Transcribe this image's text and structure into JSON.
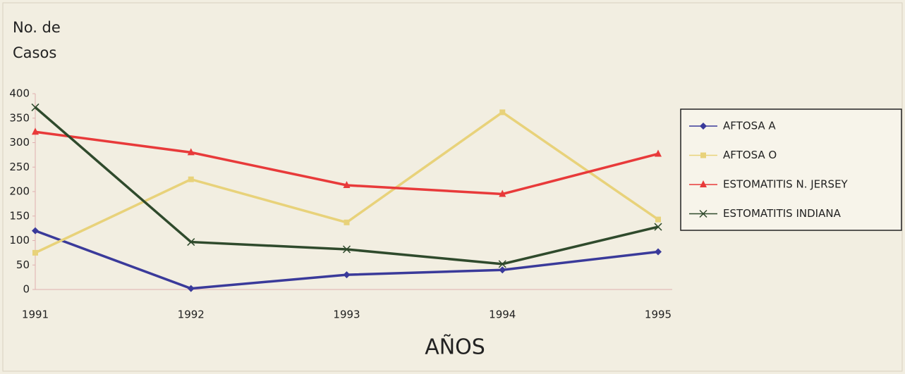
{
  "chart_data": {
    "type": "line",
    "ylabel": [
      "No. de",
      "Casos"
    ],
    "xlabel": "AÑOS",
    "categories": [
      "1991",
      "1992",
      "1993",
      "1994",
      "1995"
    ],
    "series": [
      {
        "name": "AFTOSA A",
        "color": "#3a3a9a",
        "marker": "diamond",
        "values": [
          120,
          2,
          30,
          40,
          77
        ]
      },
      {
        "name": "AFTOSA O",
        "color": "#e8d27a",
        "marker": "square",
        "values": [
          75,
          225,
          137,
          362,
          143
        ]
      },
      {
        "name": "ESTOMATITIS N. JERSEY",
        "color": "#e83a3a",
        "marker": "triangle",
        "values": [
          322,
          280,
          213,
          195,
          277
        ]
      },
      {
        "name": "ESTOMATITIS INDIANA",
        "color": "#2f4a2c",
        "marker": "x",
        "values": [
          372,
          97,
          82,
          52,
          128
        ]
      }
    ],
    "ylim": [
      0,
      400
    ],
    "yticks": [
      0,
      50,
      100,
      150,
      200,
      250,
      300,
      350,
      400
    ],
    "legend": "right"
  }
}
